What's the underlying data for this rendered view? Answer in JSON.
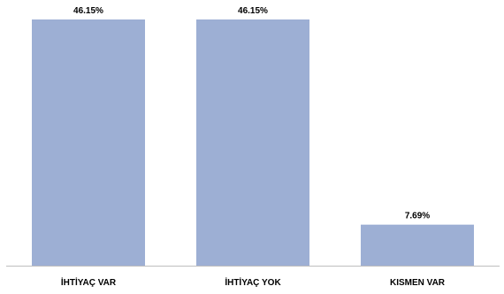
{
  "chart_data": {
    "type": "bar",
    "categories": [
      "İHTİYAÇ VAR",
      "İHTİYAÇ YOK",
      "KISMEN VAR"
    ],
    "values": [
      46.15,
      46.15,
      7.69
    ],
    "data_labels": [
      "46.15%",
      "46.15%",
      "7.69%"
    ],
    "title": "",
    "xlabel": "",
    "ylabel": "",
    "ylim": [
      0,
      46.15
    ],
    "grid": false,
    "legend": "none",
    "bar_color": "#9dafd4",
    "axis_color": "#bfbfbf"
  }
}
